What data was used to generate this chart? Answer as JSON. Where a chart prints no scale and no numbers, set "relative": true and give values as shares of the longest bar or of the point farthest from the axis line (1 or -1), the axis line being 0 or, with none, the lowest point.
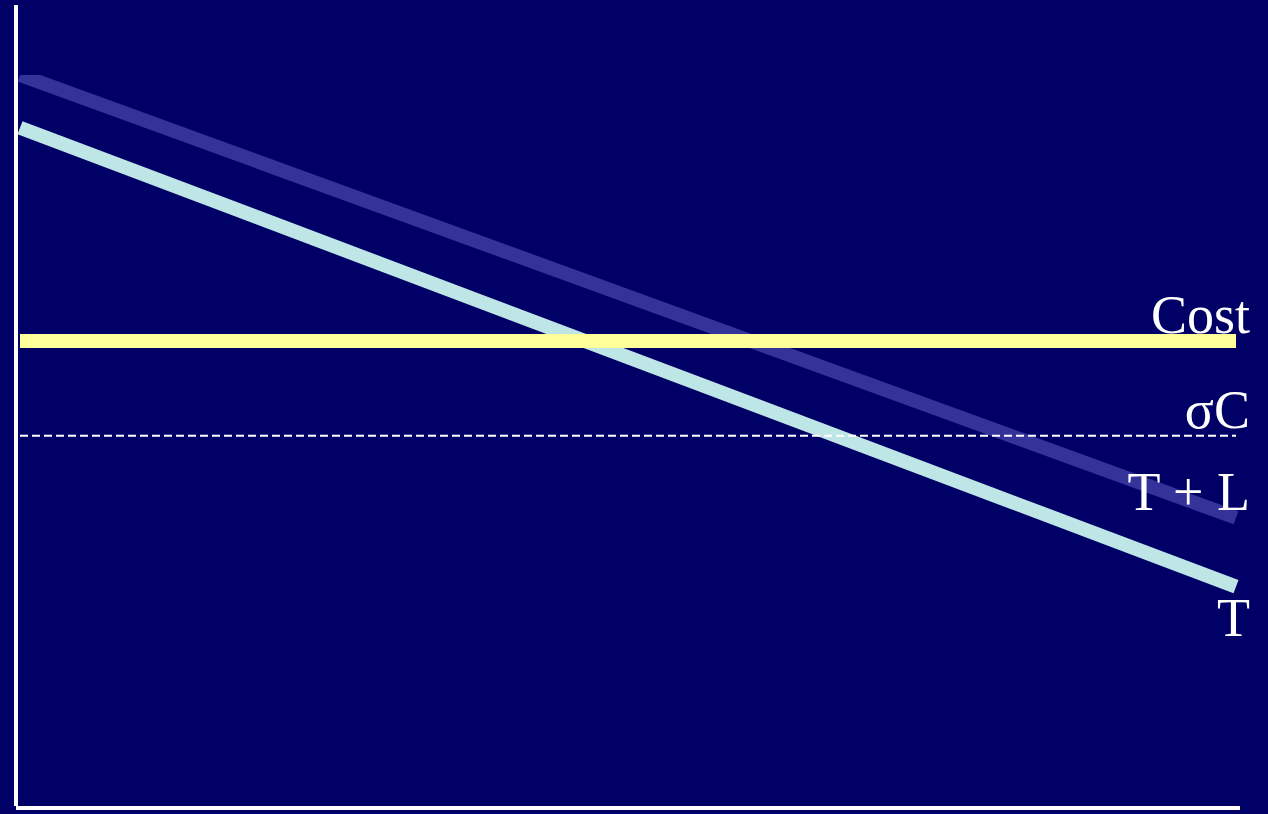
{
  "chart_data": {
    "type": "line",
    "relative": true,
    "tick_labels": false,
    "legend": false,
    "marker": "none",
    "categories": [
      null,
      null
    ],
    "ref_lines": [
      {
        "axis": "y",
        "value": 0,
        "color": "#ffffff"
      }
    ],
    "series": [
      {
        "name": "Cost",
        "color": "#ffff99",
        "values": [
          0.637,
          0.637
        ]
      },
      {
        "name": "σC",
        "color": "#ffffff",
        "values": [
          0.508,
          0.508
        ],
        "line_style": "dashed"
      },
      {
        "name": "T + L",
        "color": "#333399",
        "values": [
          1,
          0.396
        ]
      },
      {
        "name": "T",
        "color": "#bfe6e6",
        "values": [
          0.928,
          0.302
        ]
      }
    ]
  }
}
